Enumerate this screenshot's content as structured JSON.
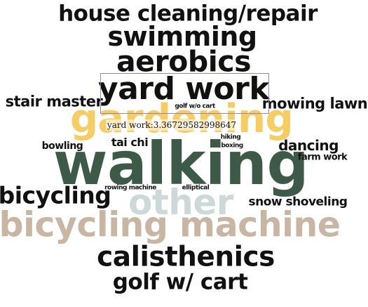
{
  "word_cloud": {
    "words": [
      {
        "text": "house cleaning/repair",
        "color": "#111111"
      },
      {
        "text": "swimming",
        "color": "#111111"
      },
      {
        "text": "aerobics",
        "color": "#111111"
      },
      {
        "text": "gardening",
        "color": "#f5cd62"
      },
      {
        "text": "yard work",
        "color": "#111111"
      },
      {
        "text": "stair master",
        "color": "#111111"
      },
      {
        "text": "mowing lawn",
        "color": "#111111"
      },
      {
        "text": "golf w/o cart",
        "color": "#111111"
      },
      {
        "text": "walking",
        "color": "#3d5a48"
      },
      {
        "text": "bowling",
        "color": "#111111"
      },
      {
        "text": "tai chi",
        "color": "#111111"
      },
      {
        "text": "hiking",
        "color": "#111111"
      },
      {
        "text": "boxing",
        "color": "#111111"
      },
      {
        "text": "dancing",
        "color": "#111111"
      },
      {
        "text": "farm work",
        "color": "#111111"
      },
      {
        "text": "other",
        "color": "#cdd8d8"
      },
      {
        "text": "bicycling",
        "color": "#111111"
      },
      {
        "text": "rowing machine",
        "color": "#111111"
      },
      {
        "text": "elliptical",
        "color": "#111111"
      },
      {
        "text": "snow shoveling",
        "color": "#111111"
      },
      {
        "text": "bicycling machine",
        "color": "#c8b5a2"
      },
      {
        "text": "calisthenics",
        "color": "#111111"
      },
      {
        "text": "golf w/ cart",
        "color": "#111111"
      }
    ]
  },
  "tooltip": {
    "text": "yard work:3.36729582998647"
  }
}
